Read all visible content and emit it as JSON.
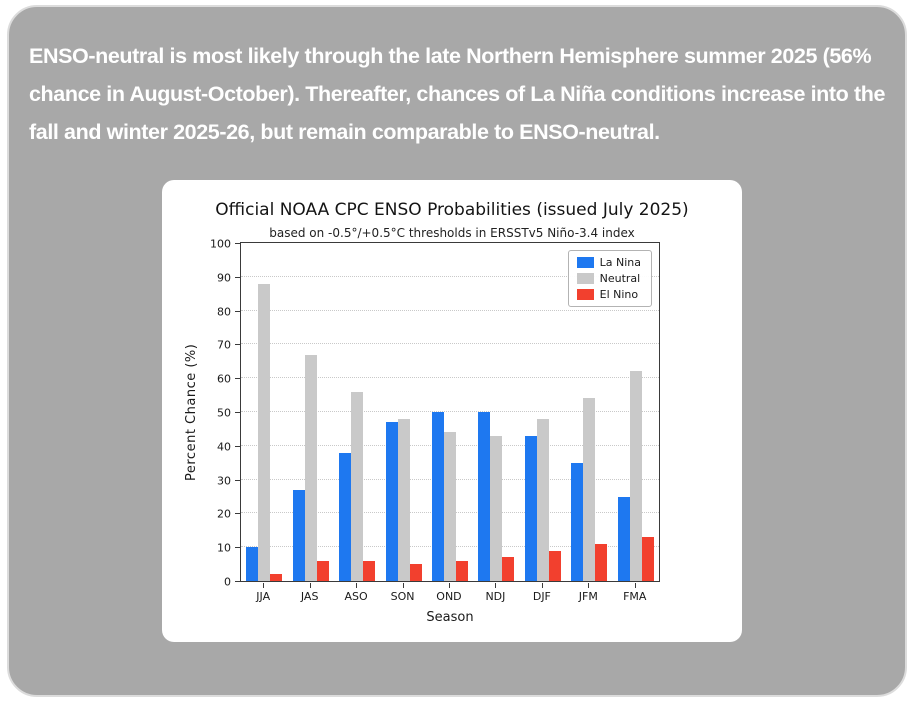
{
  "headline": {
    "text": "ENSO-neutral is most likely through the late Northern Hemisphere summer 2025 (56% chance in August-October). Thereafter, chances of La Niña conditions increase into the fall and winter 2025-26, but remain comparable to ENSO-neutral."
  },
  "chart_data": {
    "type": "bar",
    "title": "Official NOAA CPC ENSO Probabilities (issued July 2025)",
    "subtitle": "based on -0.5°/+0.5°C thresholds in ERSSTv5 Niño-3.4 index",
    "xlabel": "Season",
    "ylabel": "Percent Chance (%)",
    "ylim": [
      0,
      100
    ],
    "yticks": [
      0,
      10,
      20,
      30,
      40,
      50,
      60,
      70,
      80,
      90,
      100
    ],
    "grid": true,
    "legend_position": "upper right",
    "categories": [
      "JJA",
      "JAS",
      "ASO",
      "SON",
      "OND",
      "NDJ",
      "DJF",
      "JFM",
      "FMA"
    ],
    "series": [
      {
        "name": "La Nina",
        "color": "#1e78f0",
        "values": [
          10,
          27,
          38,
          47,
          50,
          50,
          43,
          35,
          25
        ]
      },
      {
        "name": "Neutral",
        "color": "#c9c9c9",
        "values": [
          88,
          67,
          56,
          48,
          44,
          43,
          48,
          54,
          62
        ]
      },
      {
        "name": "El Nino",
        "color": "#f2402e",
        "values": [
          2,
          6,
          6,
          5,
          6,
          7,
          9,
          11,
          13
        ]
      }
    ]
  }
}
